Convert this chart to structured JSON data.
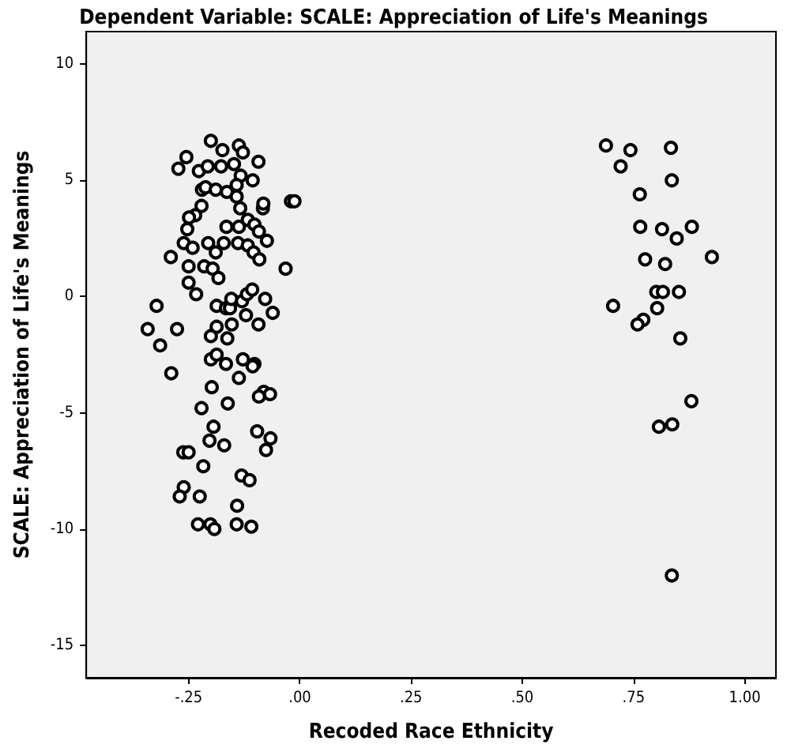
{
  "chart_data": {
    "type": "scatter",
    "title": "Dependent Variable: SCALE: Appreciation of Life's Meanings",
    "xlabel": "Recoded Race Ethnicity",
    "ylabel": "SCALE: Appreciation of Life's Meanings",
    "xlim": [
      -0.48,
      1.07
    ],
    "ylim": [
      -16.4,
      11.4
    ],
    "xticks": [
      {
        "value": -0.25,
        "label": "-.25"
      },
      {
        "value": 0,
        "label": ".00"
      },
      {
        "value": 0.25,
        "label": ".25"
      },
      {
        "value": 0.5,
        "label": ".50"
      },
      {
        "value": 0.75,
        "label": ".75"
      },
      {
        "value": 1,
        "label": "1.00"
      }
    ],
    "yticks": [
      -15,
      -10,
      -5,
      0,
      5,
      10
    ],
    "grid": false,
    "marker": "circle",
    "series": [
      {
        "color": "#000000",
        "x": [
          -0.273,
          -0.255,
          -0.227,
          -0.207,
          -0.2,
          -0.177,
          -0.174,
          -0.148,
          -0.137,
          -0.128,
          -0.133,
          -0.106,
          -0.093,
          -0.22,
          -0.212,
          -0.189,
          -0.164,
          -0.142,
          -0.142,
          -0.134,
          -0.221,
          -0.235,
          -0.249,
          -0.253,
          -0.165,
          -0.137,
          -0.117,
          -0.102,
          -0.092,
          -0.083,
          -0.082,
          -0.02,
          -0.012,
          -0.261,
          -0.206,
          -0.171,
          -0.139,
          -0.117,
          -0.074,
          -0.241,
          -0.189,
          -0.104,
          -0.091,
          -0.29,
          -0.25,
          -0.215,
          -0.196,
          -0.183,
          -0.032,
          -0.25,
          -0.233,
          -0.322,
          -0.187,
          -0.166,
          -0.157,
          -0.154,
          -0.13,
          -0.119,
          -0.107,
          -0.078,
          -0.061,
          -0.121,
          -0.153,
          -0.093,
          -0.187,
          -0.342,
          -0.276,
          -0.2,
          -0.163,
          -0.314,
          -0.2,
          -0.187,
          -0.166,
          -0.128,
          -0.102,
          -0.106,
          -0.289,
          -0.137,
          -0.198,
          -0.221,
          -0.162,
          -0.081,
          -0.067,
          -0.092,
          -0.194,
          -0.096,
          -0.066,
          -0.076,
          -0.203,
          -0.17,
          -0.262,
          -0.25,
          -0.217,
          -0.131,
          -0.113,
          -0.261,
          -0.27,
          -0.225,
          -0.141,
          -0.201,
          -0.229,
          -0.192,
          -0.142,
          -0.109,
          0.688,
          0.743,
          0.834,
          0.721,
          0.836,
          0.764,
          0.765,
          0.814,
          0.847,
          0.881,
          0.776,
          0.821,
          0.926,
          0.801,
          0.816,
          0.852,
          0.704,
          0.803,
          0.772,
          0.759,
          0.855,
          0.88,
          0.807,
          0.837,
          0.836
        ],
        "values": [
          5.5,
          6.0,
          5.4,
          5.6,
          6.7,
          5.6,
          6.3,
          5.7,
          6.5,
          6.2,
          5.2,
          5.0,
          5.8,
          4.6,
          4.7,
          4.6,
          4.5,
          4.8,
          4.3,
          3.8,
          3.9,
          3.5,
          3.4,
          2.9,
          3.0,
          3.0,
          3.3,
          3.1,
          2.8,
          3.8,
          4.0,
          4.1,
          4.1,
          2.3,
          2.3,
          2.3,
          2.3,
          2.2,
          2.4,
          2.1,
          1.9,
          1.9,
          1.6,
          1.7,
          1.3,
          1.3,
          1.2,
          0.8,
          1.2,
          0.6,
          0.1,
          -0.4,
          -0.4,
          -0.5,
          -0.5,
          -0.1,
          -0.2,
          0.1,
          0.3,
          -0.1,
          -0.7,
          -0.8,
          -1.2,
          -1.2,
          -1.3,
          -1.4,
          -1.4,
          -1.7,
          -1.8,
          -2.1,
          -2.7,
          -2.5,
          -2.9,
          -2.7,
          -2.9,
          -3.0,
          -3.3,
          -3.5,
          -3.9,
          -4.8,
          -4.6,
          -4.1,
          -4.2,
          -4.3,
          -5.6,
          -5.8,
          -6.1,
          -6.6,
          -6.2,
          -6.4,
          -6.7,
          -6.7,
          -7.3,
          -7.7,
          -7.9,
          -8.2,
          -8.6,
          -8.6,
          -9.0,
          -9.8,
          -9.8,
          -10.0,
          -9.8,
          -9.9,
          6.5,
          6.3,
          6.4,
          5.6,
          5.0,
          4.4,
          3.0,
          2.9,
          2.5,
          3.0,
          1.6,
          1.4,
          1.7,
          0.2,
          0.2,
          0.2,
          -0.4,
          -0.5,
          -1.0,
          -1.2,
          -1.8,
          -4.5,
          -5.6,
          -5.5,
          -12.0
        ]
      }
    ]
  }
}
